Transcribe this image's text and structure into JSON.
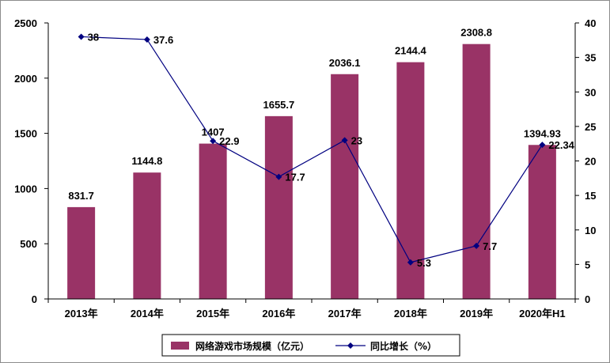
{
  "chart_data": {
    "type": "bar",
    "categories": [
      "2013年",
      "2014年",
      "2015年",
      "2016年",
      "2017年",
      "2018年",
      "2019年",
      "2020年H1"
    ],
    "series": [
      {
        "name": "网络游戏市场规模（亿元）",
        "type": "bar",
        "axis": "left",
        "color": "#993366",
        "values": [
          831.7,
          1144.8,
          1407,
          1655.7,
          2036.1,
          2144.4,
          2308.8,
          1394.93
        ],
        "labels": [
          "831.7",
          "1144.8",
          "1407",
          "1655.7",
          "2036.1",
          "2144.4",
          "2308.8",
          "1394.93"
        ]
      },
      {
        "name": "同比增长（%）",
        "type": "line",
        "axis": "right",
        "color": "#000080",
        "values": [
          38,
          37.6,
          22.9,
          17.7,
          23,
          5.3,
          7.7,
          22.34
        ],
        "labels": [
          "38",
          "37.6",
          "22.9",
          "17.7",
          "23",
          "5.3",
          "7.7",
          "22.34"
        ]
      }
    ],
    "y_left": {
      "min": 0,
      "max": 2500,
      "ticks": [
        "0",
        "500",
        "1000",
        "1500",
        "2000",
        "2500"
      ]
    },
    "y_right": {
      "min": 0,
      "max": 40,
      "ticks": [
        "0",
        "5",
        "10",
        "15",
        "20",
        "25",
        "30",
        "35",
        "40"
      ]
    },
    "legend_position": "bottom",
    "grid": false
  }
}
